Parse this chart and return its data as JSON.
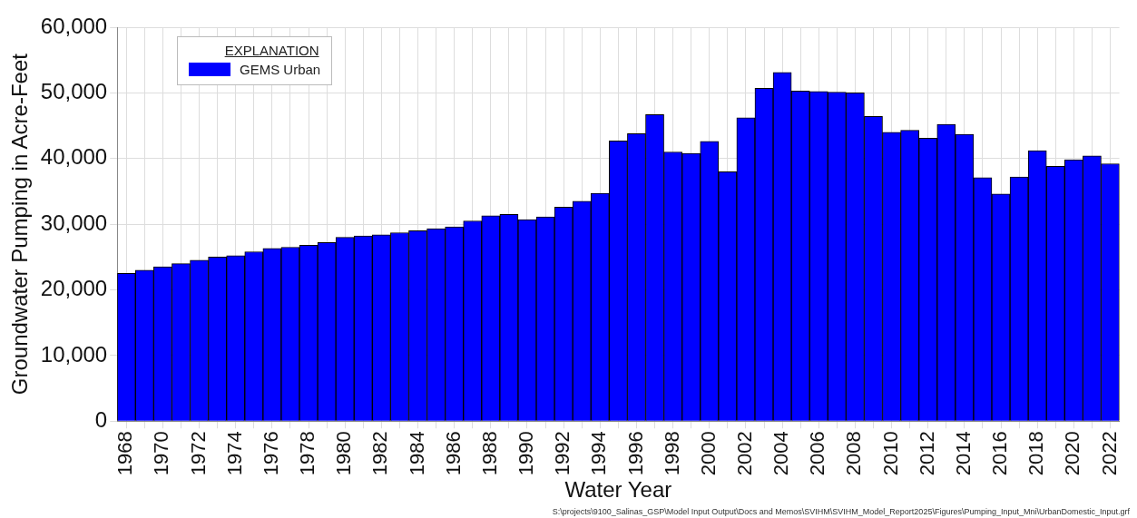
{
  "chart_data": {
    "type": "bar",
    "xlabel": "Water Year",
    "ylabel": "Groundwater Pumping in Acre-Feet",
    "legend_title": "EXPLANATION",
    "categories": [
      "1968",
      null,
      "1970",
      null,
      "1972",
      null,
      "1974",
      null,
      "1976",
      null,
      "1978",
      null,
      "1980",
      null,
      "1982",
      null,
      "1984",
      null,
      "1986",
      null,
      "1988",
      null,
      "1990",
      null,
      "1992",
      null,
      "1994",
      null,
      "1996",
      null,
      "1998",
      null,
      "2000",
      null,
      "2002",
      null,
      "2004",
      null,
      "2006",
      null,
      "2008",
      null,
      "2010",
      null,
      "2012",
      null,
      "2014",
      null,
      "2016",
      null,
      "2018",
      null,
      "2020",
      null,
      "2022"
    ],
    "series": [
      {
        "name": "GEMS Urban",
        "color": "#0000ff",
        "values": [
          22500,
          23000,
          23500,
          24000,
          24500,
          25000,
          25200,
          25800,
          26300,
          26500,
          26800,
          27200,
          28000,
          28200,
          28400,
          28700,
          29000,
          29300,
          29600,
          30500,
          31300,
          31500,
          30700,
          31100,
          32600,
          33500,
          34700,
          42700,
          43800,
          46700,
          41000,
          40800,
          42600,
          38000,
          46200,
          50700,
          53100,
          50300,
          50200,
          50100,
          50000,
          46400,
          44000,
          44300,
          43100,
          45200,
          43700,
          37100,
          34600,
          37200,
          41200,
          38800,
          39800,
          40400,
          39200
        ]
      }
    ],
    "ylim": [
      0,
      60000
    ],
    "yticks": [
      {
        "value": 0,
        "label": "0"
      },
      {
        "value": 10000,
        "label": "10,000"
      },
      {
        "value": 20000,
        "label": "20,000"
      },
      {
        "value": 30000,
        "label": "30,000"
      },
      {
        "value": 40000,
        "label": "40,000"
      },
      {
        "value": 50000,
        "label": "50,000"
      },
      {
        "value": 60000,
        "label": "60,000"
      }
    ],
    "grid": true,
    "legend": "top left",
    "annotations": [
      "S:\\projects\\9100_Salinas_GSP\\Model Input Output\\Docs and Memos\\SVIHM\\SVIHM_Model_Report2025\\Figures\\Pumping_Input_Mni\\UrbanDomestic_Input.grf"
    ]
  }
}
